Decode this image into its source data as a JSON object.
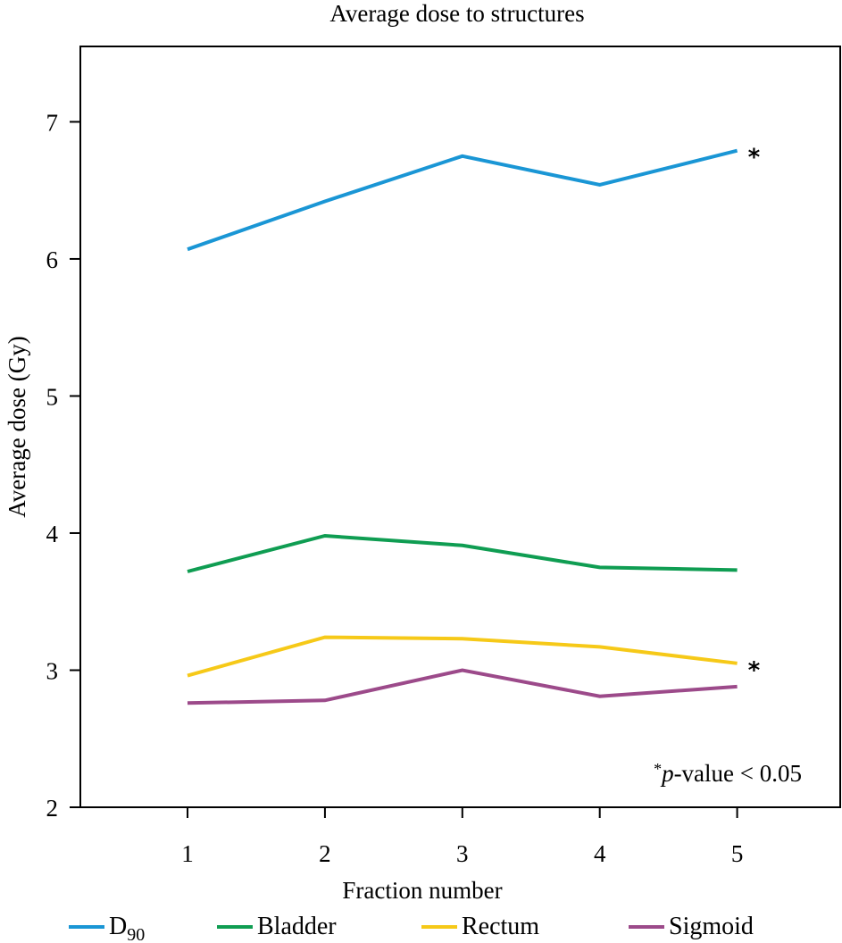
{
  "chart_data": {
    "type": "line",
    "title": "Average dose to structures",
    "xlabel": "Fraction number",
    "ylabel": "Average dose (Gy)",
    "x": [
      1,
      2,
      3,
      4,
      5
    ],
    "x_tick_labels": [
      "1",
      "2",
      "3",
      "4",
      "5"
    ],
    "xlim": [
      0.22,
      5.75
    ],
    "ylim": [
      2,
      7.55
    ],
    "y_ticks": [
      2,
      3,
      4,
      5,
      6,
      7
    ],
    "y_tick_labels": [
      "2",
      "3",
      "4",
      "5",
      "6",
      "7"
    ],
    "grid": false,
    "legend_position": "bottom",
    "series": [
      {
        "name": "D90",
        "label_main": "D",
        "label_sub": "90",
        "color": "#1a96d5",
        "values": [
          6.07,
          6.42,
          6.75,
          6.54,
          6.79
        ],
        "significant": true
      },
      {
        "name": "Bladder",
        "label_main": "Bladder",
        "label_sub": "",
        "color": "#0f9d52",
        "values": [
          3.72,
          3.98,
          3.91,
          3.75,
          3.73
        ],
        "significant": false
      },
      {
        "name": "Rectum",
        "label_main": "Rectum",
        "label_sub": "",
        "color": "#f6c918",
        "values": [
          2.96,
          3.24,
          3.23,
          3.17,
          3.05
        ],
        "significant": true
      },
      {
        "name": "Sigmoid",
        "label_main": "Sigmoid",
        "label_sub": "",
        "color": "#9c4a8a",
        "values": [
          2.76,
          2.78,
          3.0,
          2.81,
          2.88
        ],
        "significant": false
      }
    ],
    "significance_marker": "*",
    "annotation": {
      "star": "*",
      "p_symbol": "p",
      "text": "-value < 0.05"
    }
  }
}
